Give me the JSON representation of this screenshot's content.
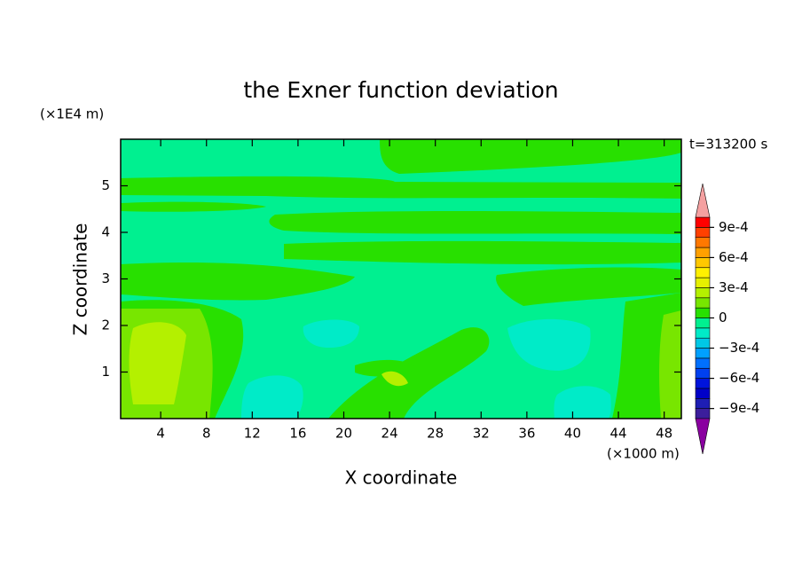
{
  "chart_data": {
    "type": "contour",
    "title": "the Exner function deviation",
    "time_label": "t=313200 s",
    "x_label": "X coordinate",
    "x_unit": "(×1000 m)",
    "y_label": "Z coordinate",
    "y_unit": "(×1E4 m)",
    "xlim": [
      0.5,
      49.5
    ],
    "xticks": [
      4,
      8,
      12,
      16,
      20,
      24,
      28,
      32,
      36,
      40,
      44,
      48
    ],
    "ylim": [
      0,
      6
    ],
    "yticks": [
      1,
      2,
      3,
      4,
      5
    ],
    "colorbar": {
      "levels": [
        -0.001,
        -0.0009,
        -0.0008,
        -0.0007,
        -0.0006,
        -0.0005,
        -0.0004,
        -0.0003,
        -0.0002,
        -0.0001,
        0,
        0.0001,
        0.0002,
        0.0003,
        0.0004,
        0.0005,
        0.0006,
        0.0007,
        0.0008,
        0.0009,
        0.001
      ],
      "colors": [
        "#3c1e9c",
        "#1e1eb4",
        "#0000c8",
        "#0014dc",
        "#0040f0",
        "#0070ff",
        "#00a0ff",
        "#00c8e6",
        "#00ebc8",
        "#00f090",
        "#28e000",
        "#78e600",
        "#b4f000",
        "#e6f000",
        "#fff000",
        "#ffc800",
        "#ffa000",
        "#ff7800",
        "#ff4000",
        "#ff0000"
      ],
      "extend_colors": [
        "#8a00a0",
        "#f4a0a0"
      ],
      "ticks": [
        {
          "value": -0.0009,
          "label": "−9e-4"
        },
        {
          "value": -0.0006,
          "label": "−6e-4"
        },
        {
          "value": -0.0003,
          "label": "−3e-4"
        },
        0,
        {
          "value": 0.0003,
          "label": "3e-4"
        },
        {
          "value": 0.0006,
          "label": "6e-4"
        },
        {
          "value": 0.0009,
          "label": "9e-4"
        }
      ]
    }
  }
}
